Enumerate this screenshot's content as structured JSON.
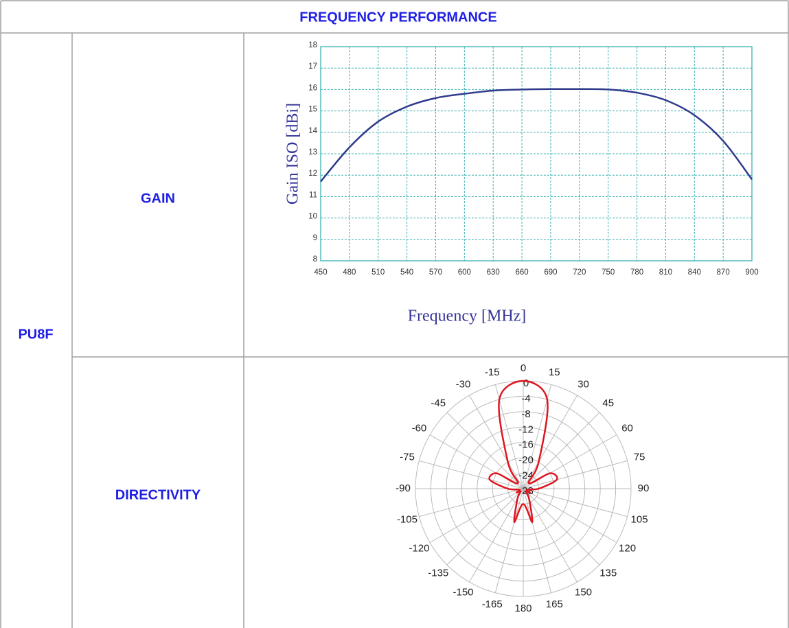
{
  "header": "FREQUENCY PERFORMANCE",
  "model": "PU8F",
  "rows": [
    {
      "label": "GAIN"
    },
    {
      "label": "DIRECTIVITY"
    }
  ],
  "chart_data": [
    {
      "type": "line",
      "x_label": "Frequency [MHz]",
      "y_label": "Gain ISO [dBi]",
      "x": [
        450,
        480,
        510,
        540,
        570,
        600,
        630,
        660,
        690,
        720,
        750,
        780,
        810,
        840,
        870,
        900
      ],
      "series": [
        {
          "color": "#2e3a8c",
          "values": [
            11.7,
            13.3,
            14.5,
            15.2,
            15.6,
            15.8,
            15.95,
            16.0,
            16.02,
            16.02,
            16.0,
            15.85,
            15.5,
            14.8,
            13.6,
            11.8
          ]
        }
      ],
      "xlim": [
        450,
        900
      ],
      "ylim": [
        8,
        18
      ],
      "xticks": [
        450,
        480,
        510,
        540,
        570,
        600,
        630,
        660,
        690,
        720,
        750,
        780,
        810,
        840,
        870,
        900
      ],
      "yticks": [
        8,
        9,
        10,
        11,
        12,
        13,
        14,
        15,
        16,
        17,
        18
      ],
      "grid": true,
      "grid_color": "#3ab0b0"
    },
    {
      "type": "polar",
      "theta": [
        -165,
        -150,
        -135,
        -120,
        -105,
        -90,
        -75,
        -60,
        -45,
        -30,
        -15,
        0,
        15,
        30,
        45,
        60,
        75,
        90,
        105,
        120,
        135,
        150,
        165,
        180
      ],
      "series": [
        {
          "color": "#e0141e",
          "values": [
            -19,
            -25,
            -27,
            -26,
            -27,
            -24,
            -19,
            -20,
            -26,
            -20,
            -4,
            0,
            -4,
            -20,
            -26,
            -20,
            -19,
            -24,
            -27,
            -26,
            -27,
            -25,
            -19,
            -24
          ]
        }
      ],
      "rlim": [
        -28,
        0
      ],
      "rticks": [
        0,
        -4,
        -8,
        -12,
        -16,
        -20,
        -24,
        -28
      ],
      "thetaticks": [
        0,
        15,
        30,
        45,
        60,
        75,
        90,
        105,
        120,
        135,
        150,
        165,
        180,
        -165,
        -150,
        -135,
        -120,
        -105,
        -90,
        -75,
        -60,
        -45,
        -30,
        -15
      ],
      "grid": true
    }
  ]
}
